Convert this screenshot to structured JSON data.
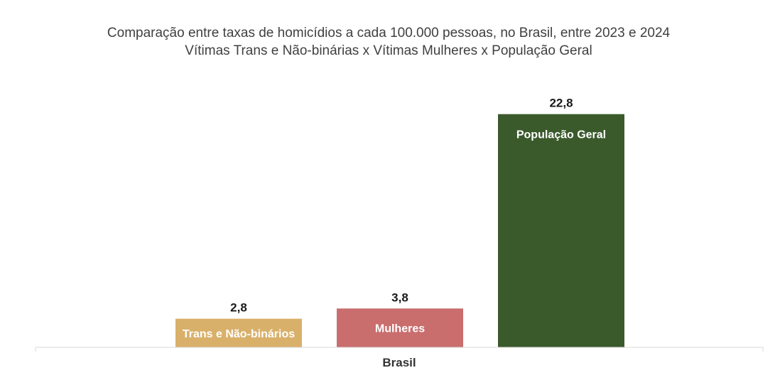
{
  "chart_data": {
    "type": "bar",
    "title": "Comparação entre taxas de homicídios a cada 100.000 pessoas, no Brasil, entre 2023 e 2024",
    "subtitle": "Vítimas Trans e Não-binárias x Vítimas Mulheres x População Geral",
    "categories": [
      "Brasil"
    ],
    "series": [
      {
        "name": "Trans e Não-binários",
        "value": 2.8,
        "value_label": "2,8",
        "color": "#d9b06a"
      },
      {
        "name": "Mulheres",
        "value": 3.8,
        "value_label": "3,8",
        "color": "#c96d6d"
      },
      {
        "name": "População Geral",
        "value": 22.8,
        "value_label": "22,8",
        "color": "#3a5a2c"
      }
    ],
    "ylim": [
      0,
      25
    ],
    "grid": false,
    "legend": "none"
  }
}
